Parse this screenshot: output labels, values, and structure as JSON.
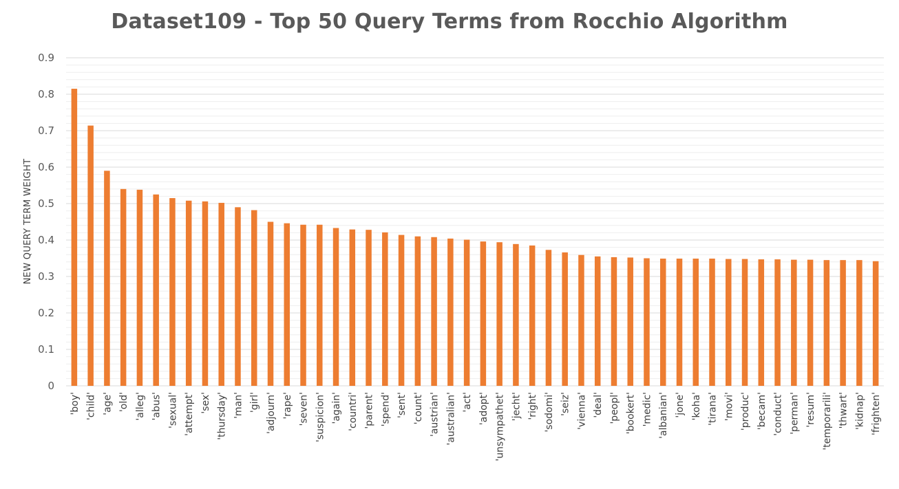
{
  "chart_data": {
    "type": "bar",
    "title": "Dataset109 - Top 50 Query Terms from Rocchio Algorithm",
    "xlabel": "",
    "ylabel": "NEW QUERY TERM WEIGHT",
    "ylim": [
      0,
      0.9
    ],
    "yticks": [
      "0",
      "0.1",
      "0.2",
      "0.3",
      "0.4",
      "0.5",
      "0.6",
      "0.7",
      "0.8",
      "0.9"
    ],
    "grid": true,
    "bar_color": "#ED7D31",
    "grid_color": "#D9D9D9",
    "categories": [
      "'boy'",
      "'child'",
      "'age'",
      "'old'",
      "'alleg'",
      "'abus'",
      "'sexual'",
      "'attempt'",
      "'sex'",
      "'thursday'",
      "'man'",
      "'girl'",
      "'adjourn'",
      "'rape'",
      "'seven'",
      "'suspicion'",
      "'again'",
      "'countri'",
      "'parent'",
      "'spend'",
      "'sent'",
      "'count'",
      "'austrian'",
      "'australian'",
      "'act'",
      "'adopt'",
      "'unsympathet'",
      "'jecht'",
      "'right'",
      "'sodomi'",
      "'seiz'",
      "'vienna'",
      "'deal'",
      "'peopl'",
      "'bookert'",
      "'medic'",
      "'albanian'",
      "'jone'",
      "'koha'",
      "'tirana'",
      "'movi'",
      "'produc'",
      "'becam'",
      "'conduct'",
      "'perman'",
      "'resum'",
      "'temporarili'",
      "'thwart'",
      "'kidnap'",
      "'frighten'"
    ],
    "values": [
      0.815,
      0.714,
      0.59,
      0.54,
      0.538,
      0.525,
      0.515,
      0.508,
      0.506,
      0.502,
      0.49,
      0.482,
      0.45,
      0.446,
      0.442,
      0.442,
      0.433,
      0.429,
      0.428,
      0.421,
      0.414,
      0.41,
      0.408,
      0.404,
      0.401,
      0.396,
      0.394,
      0.389,
      0.385,
      0.373,
      0.366,
      0.359,
      0.355,
      0.353,
      0.352,
      0.35,
      0.349,
      0.349,
      0.349,
      0.349,
      0.348,
      0.348,
      0.347,
      0.347,
      0.346,
      0.346,
      0.345,
      0.345,
      0.345,
      0.342
    ]
  }
}
